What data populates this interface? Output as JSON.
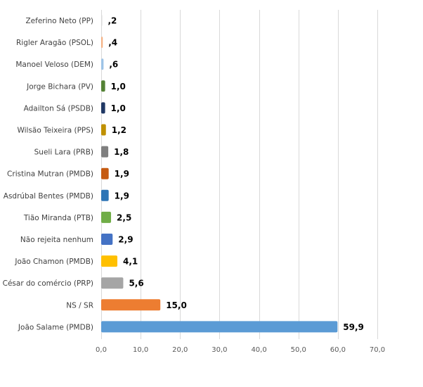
{
  "chart_data": {
    "type": "bar",
    "orientation": "horizontal",
    "categories": [
      "Zeferino Neto (PP)",
      "Rigler Aragão (PSOL)",
      "Manoel Veloso (DEM)",
      "Jorge Bichara (PV)",
      "Adailton Sá (PSDB)",
      "Wilsão Teixeira (PPS)",
      "Sueli Lara (PRB)",
      "Cristina Mutran (PMDB)",
      "Asdrúbal Bentes (PMDB)",
      "Tião Miranda (PTB)",
      "Não rejeita nenhum",
      "João Chamon (PMDB)",
      "César do comércio (PRP)",
      "NS / SR",
      "João Salame (PMDB)"
    ],
    "values": [
      0.2,
      0.4,
      0.6,
      1.0,
      1.0,
      1.2,
      1.8,
      1.9,
      1.9,
      2.5,
      2.9,
      4.1,
      5.6,
      15.0,
      59.9
    ],
    "value_labels": [
      ",2",
      ",4",
      ",6",
      "1,0",
      "1,0",
      "1,2",
      "1,8",
      "1,9",
      "1,9",
      "2,5",
      "2,9",
      "4,1",
      "5,6",
      "15,0",
      "59,9"
    ],
    "colors": [
      "#d9d9d9",
      "#f4b183",
      "#9dc3e6",
      "#548235",
      "#203864",
      "#bf9000",
      "#7f7f7f",
      "#c55a11",
      "#2e75b6",
      "#70ad47",
      "#4472c4",
      "#ffc000",
      "#a5a5a5",
      "#ed7d31",
      "#5b9bd5"
    ],
    "xlim": [
      0,
      70
    ],
    "xticks": [
      0,
      10,
      20,
      30,
      40,
      50,
      60,
      70
    ],
    "xtick_labels": [
      "0,0",
      "10,0",
      "20,0",
      "30,0",
      "40,0",
      "50,0",
      "60,0",
      "70,0"
    ],
    "grid": "vertical",
    "legend": "none"
  }
}
